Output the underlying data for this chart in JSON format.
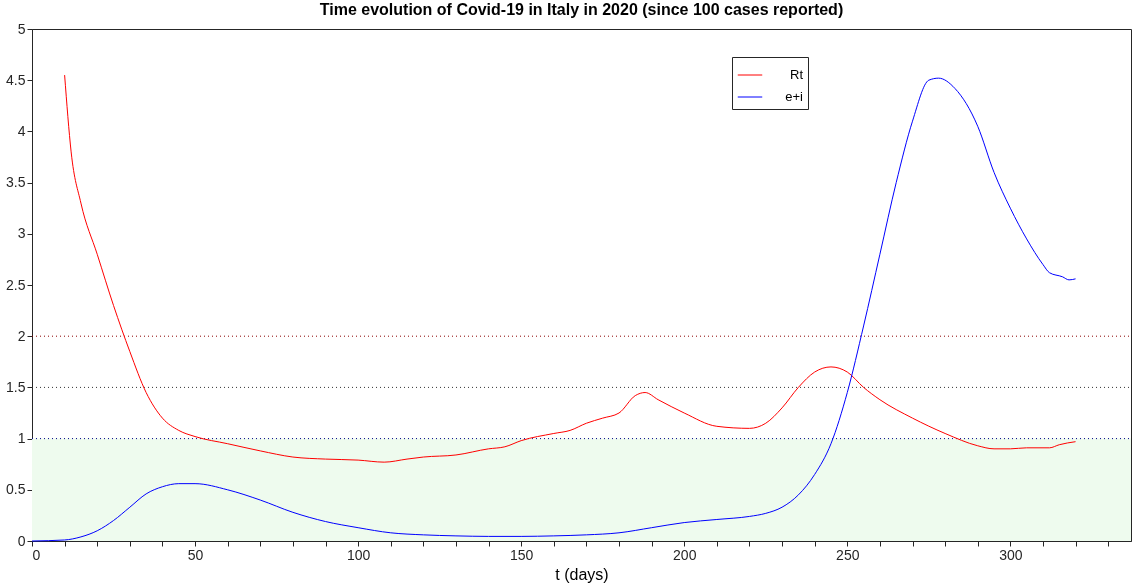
{
  "chart_data": {
    "type": "line",
    "title": "Time evolution of Covid-19 in Italy in 2020 (since 100 cases reported)",
    "xlabel": "t (days)",
    "xlim": [
      0,
      337
    ],
    "ylim": [
      0,
      5
    ],
    "xticks": [
      0,
      {
        "value": 10,
        "label": null
      },
      {
        "value": 20,
        "label": null
      },
      {
        "value": 30,
        "label": null
      },
      {
        "value": 40,
        "label": null
      },
      50,
      {
        "value": 60,
        "label": null
      },
      {
        "value": 70,
        "label": null
      },
      {
        "value": 80,
        "label": null
      },
      {
        "value": 90,
        "label": null
      },
      100,
      {
        "value": 110,
        "label": null
      },
      {
        "value": 120,
        "label": null
      },
      {
        "value": 130,
        "label": null
      },
      {
        "value": 140,
        "label": null
      },
      150,
      {
        "value": 160,
        "label": null
      },
      {
        "value": 170,
        "label": null
      },
      {
        "value": 180,
        "label": null
      },
      {
        "value": 190,
        "label": null
      },
      200,
      {
        "value": 210,
        "label": null
      },
      {
        "value": 220,
        "label": null
      },
      {
        "value": 230,
        "label": null
      },
      {
        "value": 240,
        "label": null
      },
      250,
      {
        "value": 260,
        "label": null
      },
      {
        "value": 270,
        "label": null
      },
      {
        "value": 280,
        "label": null
      },
      {
        "value": 290,
        "label": null
      },
      300,
      {
        "value": 310,
        "label": null
      },
      {
        "value": 320,
        "label": null
      },
      {
        "value": 330,
        "label": null
      }
    ],
    "yticks": [
      0,
      0.5,
      1,
      1.5,
      2,
      2.5,
      3,
      3.5,
      4,
      4.5,
      5
    ],
    "grid": false,
    "legend": "top right",
    "marker": "none",
    "line_style": "solid",
    "ref_lines": [
      {
        "axis": "y",
        "value": 2,
        "color": "#8b0000",
        "line_style": "dotted"
      },
      {
        "axis": "y",
        "value": 1.5,
        "color": "#333333",
        "line_style": "dotted"
      },
      {
        "axis": "y",
        "value": 1,
        "color": "#00008b",
        "line_style": "dotted"
      }
    ],
    "bands": [
      {
        "axis": "y",
        "from": 0,
        "to": 1,
        "color": "#eefbee"
      }
    ],
    "series": [
      {
        "name": "Rt",
        "color": "#ff0000",
        "x": [
          10,
          12,
          15,
          20,
          25,
          30,
          35,
          40,
          45,
          50,
          60,
          70,
          80,
          90,
          100,
          108,
          115,
          120,
          130,
          140,
          145,
          150,
          160,
          165,
          170,
          175,
          180,
          185,
          188,
          192,
          200,
          210,
          220,
          225,
          230,
          235,
          240,
          245,
          250,
          255,
          260,
          270,
          280,
          290,
          295,
          300,
          305,
          312,
          315,
          320
        ],
        "values": [
          4.55,
          3.8,
          3.3,
          2.8,
          2.3,
          1.85,
          1.45,
          1.2,
          1.08,
          1.02,
          0.95,
          0.88,
          0.82,
          0.8,
          0.79,
          0.77,
          0.8,
          0.82,
          0.84,
          0.9,
          0.92,
          0.98,
          1.05,
          1.08,
          1.15,
          1.2,
          1.25,
          1.42,
          1.45,
          1.38,
          1.25,
          1.12,
          1.1,
          1.15,
          1.3,
          1.5,
          1.65,
          1.7,
          1.65,
          1.5,
          1.38,
          1.2,
          1.05,
          0.93,
          0.9,
          0.9,
          0.91,
          0.91,
          0.94,
          0.97
        ]
      },
      {
        "name": "e+i",
        "color": "#0000ff",
        "x": [
          0,
          10,
          15,
          20,
          25,
          30,
          35,
          40,
          45,
          50,
          60,
          70,
          80,
          90,
          100,
          110,
          120,
          130,
          140,
          150,
          160,
          170,
          180,
          190,
          200,
          210,
          220,
          225,
          230,
          235,
          240,
          245,
          250,
          255,
          260,
          265,
          270,
          275,
          278,
          283,
          290,
          295,
          300,
          305,
          310,
          312,
          316,
          318,
          320
        ],
        "values": [
          0,
          0.01,
          0.04,
          0.1,
          0.2,
          0.33,
          0.46,
          0.53,
          0.56,
          0.56,
          0.5,
          0.4,
          0.28,
          0.19,
          0.13,
          0.08,
          0.06,
          0.05,
          0.045,
          0.045,
          0.05,
          0.06,
          0.08,
          0.13,
          0.18,
          0.21,
          0.24,
          0.27,
          0.33,
          0.45,
          0.65,
          0.95,
          1.45,
          2.1,
          2.8,
          3.5,
          4.1,
          4.5,
          4.52,
          4.42,
          4.05,
          3.6,
          3.25,
          2.95,
          2.7,
          2.62,
          2.58,
          2.55,
          2.56
        ]
      }
    ]
  }
}
